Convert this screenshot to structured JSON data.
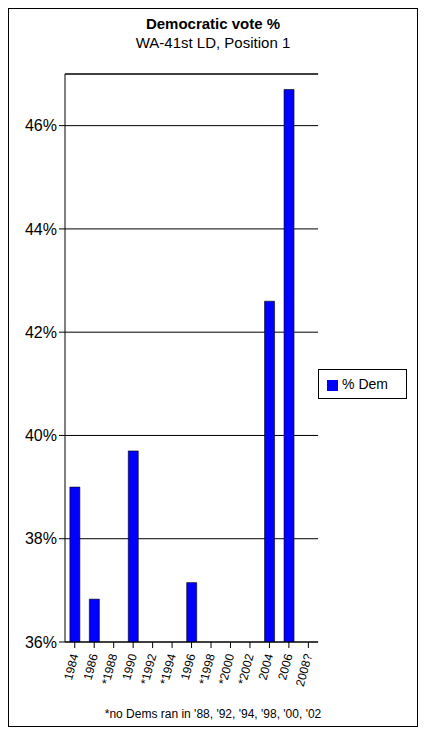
{
  "chart_data": {
    "type": "bar",
    "title": "Democratic vote %",
    "subtitle": "WA-41st LD, Position 1",
    "categories": [
      "1984",
      "1986",
      "*1988",
      "1990",
      "*1992",
      "*1994",
      "1996",
      "*1998",
      "*2000",
      "*2002",
      "2004",
      "2006",
      "2008?"
    ],
    "series": [
      {
        "name": "% Dem",
        "color": "#0000ff",
        "values": [
          39.0,
          36.83,
          null,
          39.7,
          null,
          null,
          37.15,
          null,
          null,
          null,
          42.6,
          46.7,
          null
        ]
      }
    ],
    "ylim": [
      36,
      47
    ],
    "yticks": [
      {
        "value": 36,
        "label": "36%"
      },
      {
        "value": 38,
        "label": "38%"
      },
      {
        "value": 40,
        "label": "40%"
      },
      {
        "value": 42,
        "label": "42%"
      },
      {
        "value": 44,
        "label": "44%"
      },
      {
        "value": 46,
        "label": "46%"
      }
    ],
    "grid": true,
    "legend": "right",
    "annotations": [
      "*no Dems ran in '88, '92, '94, '98, '00, '02"
    ]
  }
}
